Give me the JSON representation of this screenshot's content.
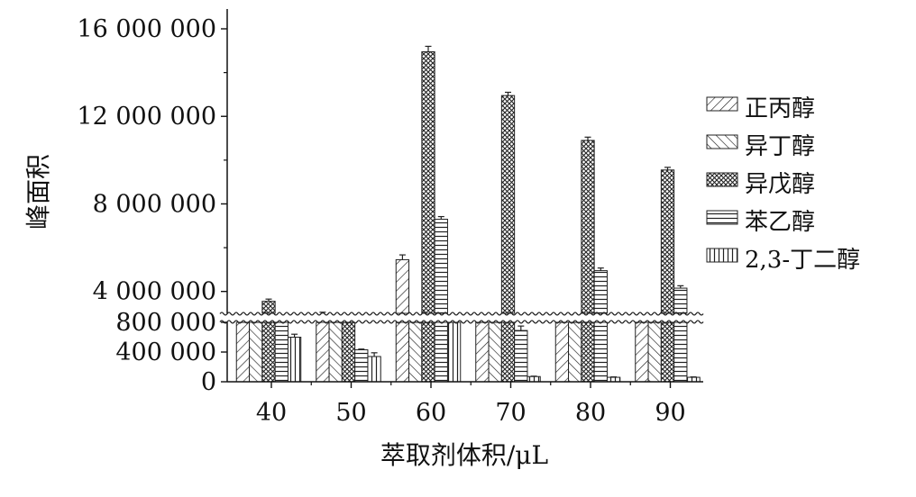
{
  "chart_data": {
    "type": "bar",
    "title": "",
    "xlabel": "萃取剂体积/μL",
    "ylabel": "峰面积",
    "categories": [
      "40",
      "50",
      "60",
      "70",
      "80",
      "90"
    ],
    "y_axis_broken": true,
    "y_break_range": [
      800000,
      3000000
    ],
    "y_ticks_lower": [
      "0",
      "400 000",
      "800 000"
    ],
    "y_ticks_upper": [
      "4 000 000",
      "8 000 000",
      "12 000 000",
      "16 000 000"
    ],
    "ylim": [
      0,
      17000000
    ],
    "grid": false,
    "legend_position": "right",
    "series": [
      {
        "name": "正丙醇",
        "pattern": "diagonal-right",
        "values": [
          1050000,
          2850000,
          5450000,
          1280000,
          1350000,
          1150000
        ],
        "errors": [
          80000,
          200000,
          220000,
          90000,
          150000,
          80000
        ]
      },
      {
        "name": "异丁醇",
        "pattern": "diagonal-left",
        "values": [
          1050000,
          1000000,
          1850000,
          1000000,
          950000,
          1600000
        ],
        "errors": [
          60000,
          60000,
          90000,
          60000,
          50000,
          120000
        ]
      },
      {
        "name": "异戊醇",
        "pattern": "crosshatch",
        "values": [
          3550000,
          1450000,
          14950000,
          12950000,
          10900000,
          9550000
        ],
        "errors": [
          100000,
          100000,
          250000,
          150000,
          150000,
          120000
        ]
      },
      {
        "name": "苯乙醇",
        "pattern": "horizontal",
        "values": [
          1450000,
          430000,
          7300000,
          690000,
          4950000,
          4150000
        ],
        "errors": [
          130000,
          10000,
          120000,
          60000,
          120000,
          110000
        ]
      },
      {
        "name": "2,3-丁二醇",
        "pattern": "vertical",
        "values": [
          600000,
          340000,
          800000,
          70000,
          60000,
          60000
        ],
        "errors": [
          40000,
          50000,
          10000,
          5000,
          5000,
          5000
        ]
      }
    ]
  }
}
